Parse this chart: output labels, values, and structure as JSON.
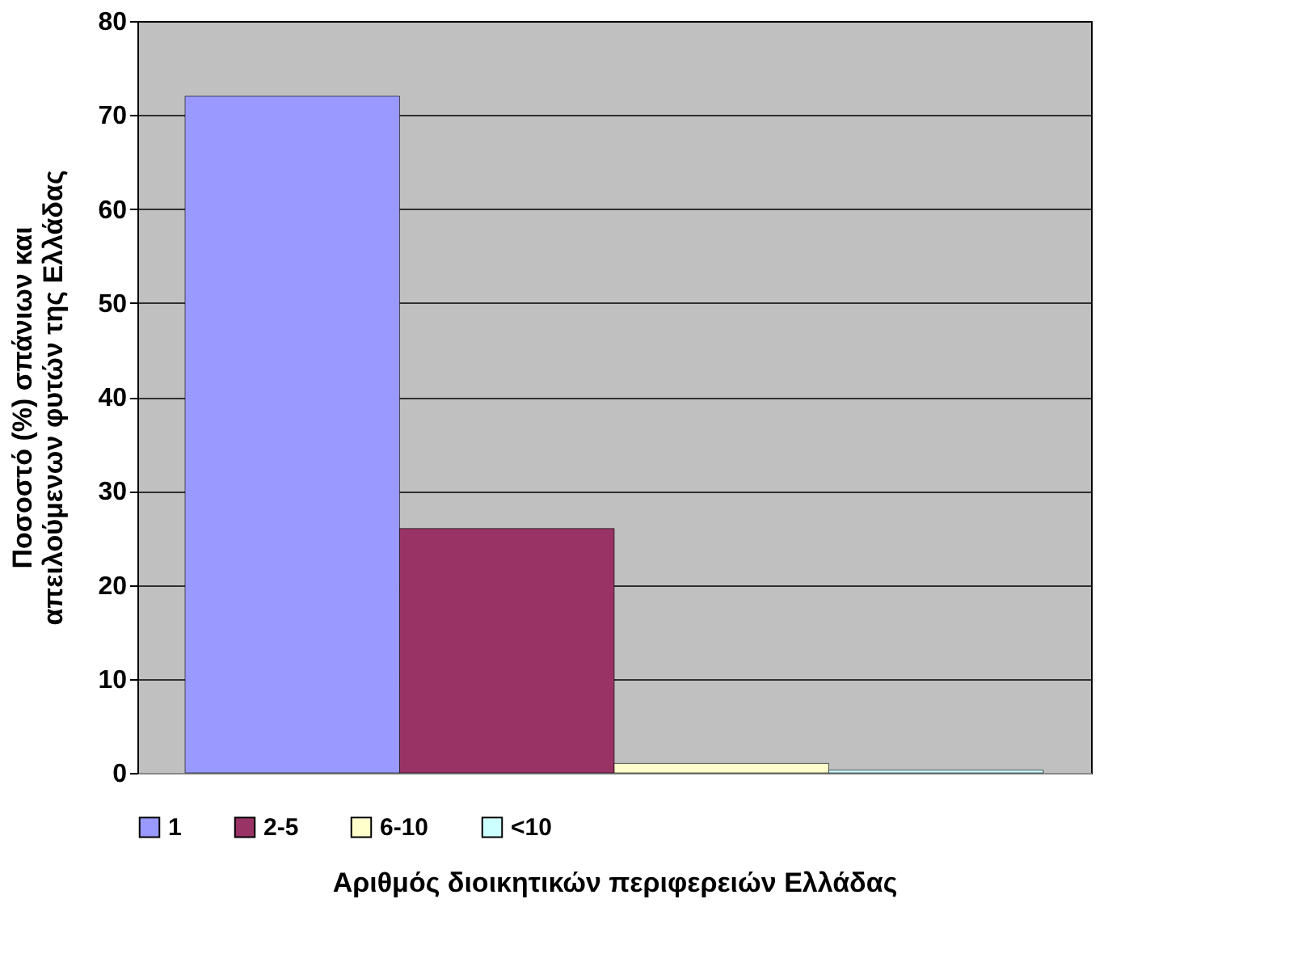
{
  "chart_data": {
    "type": "bar",
    "categories": [
      null
    ],
    "series": [
      {
        "name": "1",
        "color": "#9999ff",
        "values": [
          72
        ]
      },
      {
        "name": "2-5",
        "color": "#993366",
        "values": [
          26
        ]
      },
      {
        "name": "6-10",
        "color": "#ffffcc",
        "values": [
          1
        ]
      },
      {
        "name": "<10",
        "color": "#ccffff",
        "values": [
          0.3
        ]
      }
    ],
    "xlabel": "Αριθμός διοικητικών περιφερειών Ελλάδας",
    "ylabel": "Ποσοστό (%) σπάνιων και\nαπειλούμενων φυτών της Ελλάδας",
    "ylim": [
      0,
      80
    ],
    "yticks": [
      0,
      10,
      20,
      30,
      40,
      50,
      60,
      70,
      80
    ],
    "grid": "y",
    "legend": "bottom",
    "tick_labels": "y"
  }
}
